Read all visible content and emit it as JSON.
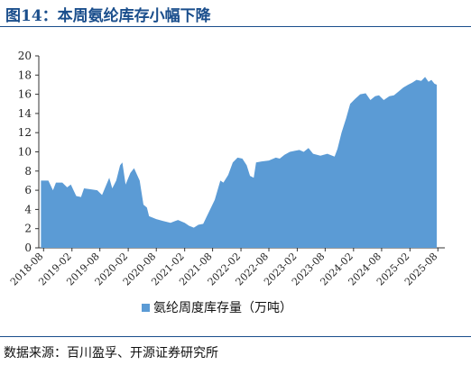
{
  "figure": {
    "title": "图14：本周氨纶库存小幅下降",
    "source": "数据来源：百川盈孚、开源证券研究所"
  },
  "colors": {
    "area": "#5b9bd5",
    "axis": "#333333",
    "title": "#1a4e8c"
  },
  "chart_data": {
    "type": "area",
    "ylim": [
      0,
      20
    ],
    "yticks": [
      0,
      2,
      4,
      6,
      8,
      10,
      12,
      14,
      16,
      18,
      20
    ],
    "xlim": [
      "2018-07-01",
      "2025-09-15"
    ],
    "xtick_labels": [
      "2018-08",
      "2019-02",
      "2019-08",
      "2020-02",
      "2020-08",
      "2021-02",
      "2021-08",
      "2022-02",
      "2022-08",
      "2023-02",
      "2023-08",
      "2024-02",
      "2024-08",
      "2025-02",
      "2025-08"
    ],
    "series": [
      {
        "name": "氨纶周度库存量（万吨）",
        "points": [
          [
            "2018-07-15",
            7.0
          ],
          [
            "2018-09-01",
            7.0
          ],
          [
            "2018-10-01",
            6.0
          ],
          [
            "2018-10-20",
            6.8
          ],
          [
            "2018-12-01",
            6.8
          ],
          [
            "2019-01-01",
            6.3
          ],
          [
            "2019-01-25",
            6.6
          ],
          [
            "2019-03-01",
            5.4
          ],
          [
            "2019-04-01",
            5.3
          ],
          [
            "2019-04-20",
            6.2
          ],
          [
            "2019-06-01",
            6.1
          ],
          [
            "2019-07-15",
            6.0
          ],
          [
            "2019-08-15",
            5.5
          ],
          [
            "2019-10-01",
            7.3
          ],
          [
            "2019-10-20",
            6.2
          ],
          [
            "2019-11-15",
            7.0
          ],
          [
            "2019-12-10",
            8.6
          ],
          [
            "2019-12-25",
            8.9
          ],
          [
            "2020-01-15",
            6.6
          ],
          [
            "2020-02-15",
            7.8
          ],
          [
            "2020-03-10",
            8.3
          ],
          [
            "2020-04-15",
            7.0
          ],
          [
            "2020-05-10",
            4.5
          ],
          [
            "2020-06-01",
            4.2
          ],
          [
            "2020-06-15",
            3.3
          ],
          [
            "2020-08-01",
            3.0
          ],
          [
            "2020-09-15",
            2.8
          ],
          [
            "2020-11-01",
            2.6
          ],
          [
            "2020-12-01",
            2.8
          ],
          [
            "2020-12-20",
            2.9
          ],
          [
            "2021-02-01",
            2.6
          ],
          [
            "2021-03-01",
            2.3
          ],
          [
            "2021-04-01",
            2.1
          ],
          [
            "2021-05-01",
            2.4
          ],
          [
            "2021-06-01",
            2.5
          ],
          [
            "2021-07-01",
            3.5
          ],
          [
            "2021-08-15",
            5.0
          ],
          [
            "2021-09-20",
            7.0
          ],
          [
            "2021-10-10",
            6.8
          ],
          [
            "2021-11-10",
            7.6
          ],
          [
            "2021-12-10",
            8.9
          ],
          [
            "2022-01-10",
            9.4
          ],
          [
            "2022-02-10",
            9.3
          ],
          [
            "2022-03-10",
            8.6
          ],
          [
            "2022-04-01",
            7.5
          ],
          [
            "2022-04-25",
            7.3
          ],
          [
            "2022-05-10",
            8.9
          ],
          [
            "2022-06-15",
            9.0
          ],
          [
            "2022-08-01",
            9.1
          ],
          [
            "2022-09-15",
            9.4
          ],
          [
            "2022-10-10",
            9.3
          ],
          [
            "2022-11-10",
            9.7
          ],
          [
            "2022-12-15",
            10.0
          ],
          [
            "2023-01-15",
            10.1
          ],
          [
            "2023-02-15",
            10.2
          ],
          [
            "2023-03-15",
            10.0
          ],
          [
            "2023-04-15",
            10.4
          ],
          [
            "2023-05-15",
            9.8
          ],
          [
            "2023-07-01",
            9.6
          ],
          [
            "2023-08-15",
            9.8
          ],
          [
            "2023-10-01",
            9.5
          ],
          [
            "2023-10-20",
            10.3
          ],
          [
            "2023-11-15",
            12.0
          ],
          [
            "2023-12-15",
            13.5
          ],
          [
            "2024-01-10",
            15.0
          ],
          [
            "2024-02-10",
            15.5
          ],
          [
            "2024-03-15",
            16.0
          ],
          [
            "2024-04-20",
            16.1
          ],
          [
            "2024-05-20",
            15.4
          ],
          [
            "2024-06-20",
            15.8
          ],
          [
            "2024-07-15",
            15.9
          ],
          [
            "2024-08-15",
            15.4
          ],
          [
            "2024-09-20",
            15.8
          ],
          [
            "2024-10-20",
            15.9
          ],
          [
            "2024-11-20",
            16.3
          ],
          [
            "2024-12-20",
            16.7
          ],
          [
            "2025-01-20",
            17.0
          ],
          [
            "2025-02-15",
            17.2
          ],
          [
            "2025-03-15",
            17.5
          ],
          [
            "2025-04-15",
            17.4
          ],
          [
            "2025-05-10",
            17.8
          ],
          [
            "2025-06-01",
            17.3
          ],
          [
            "2025-06-20",
            17.5
          ],
          [
            "2025-07-10",
            17.1
          ],
          [
            "2025-07-25",
            17.0
          ]
        ]
      }
    ],
    "legend_position": "bottom"
  }
}
